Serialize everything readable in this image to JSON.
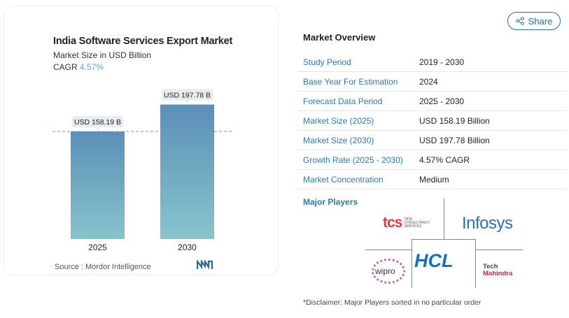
{
  "chart_card": {
    "title": "India Software Services Export Market",
    "subtitle": "Market Size in USD Billion",
    "cagr_label": "CAGR",
    "cagr_value": "4.57%",
    "source": "Source :  Mordor Intelligence"
  },
  "chart_data": {
    "type": "bar",
    "categories": [
      "2025",
      "2030"
    ],
    "values": [
      158.19,
      197.78
    ],
    "data_labels": [
      "USD 158.19 B",
      "USD 197.78 B"
    ],
    "title": "India Software Services Export Market",
    "ylabel": "Market Size in USD Billion",
    "ylim": [
      0,
      200
    ],
    "grid": false,
    "reference_line": 158.19,
    "colors": [
      "#5b8fb8",
      "#86c4cc"
    ]
  },
  "share": {
    "label": "Share",
    "icon": "share-icon"
  },
  "overview": {
    "title": "Market Overview",
    "rows": [
      {
        "label": "Study Period",
        "value": "2019 - 2030"
      },
      {
        "label": "Base Year For Estimation",
        "value": "2024"
      },
      {
        "label": "Forecast Data Period",
        "value": "2025 - 2030"
      },
      {
        "label": "Market Size (2025)",
        "value": "USD 158.19 Billion"
      },
      {
        "label": "Market Size (2030)",
        "value": "USD 197.78 Billion"
      },
      {
        "label": "Growth Rate (2025 - 2030)",
        "value": "4.57% CAGR"
      },
      {
        "label": "Market Concentration",
        "value": "Medium"
      }
    ]
  },
  "players": {
    "title": "Major Players",
    "list": [
      "TCS Tata Consultancy Services",
      "Infosys",
      "HCL",
      "Wipro",
      "Tech Mahindra"
    ],
    "disclaimer": "*Disclaimer: Major Players sorted in no particular order"
  }
}
